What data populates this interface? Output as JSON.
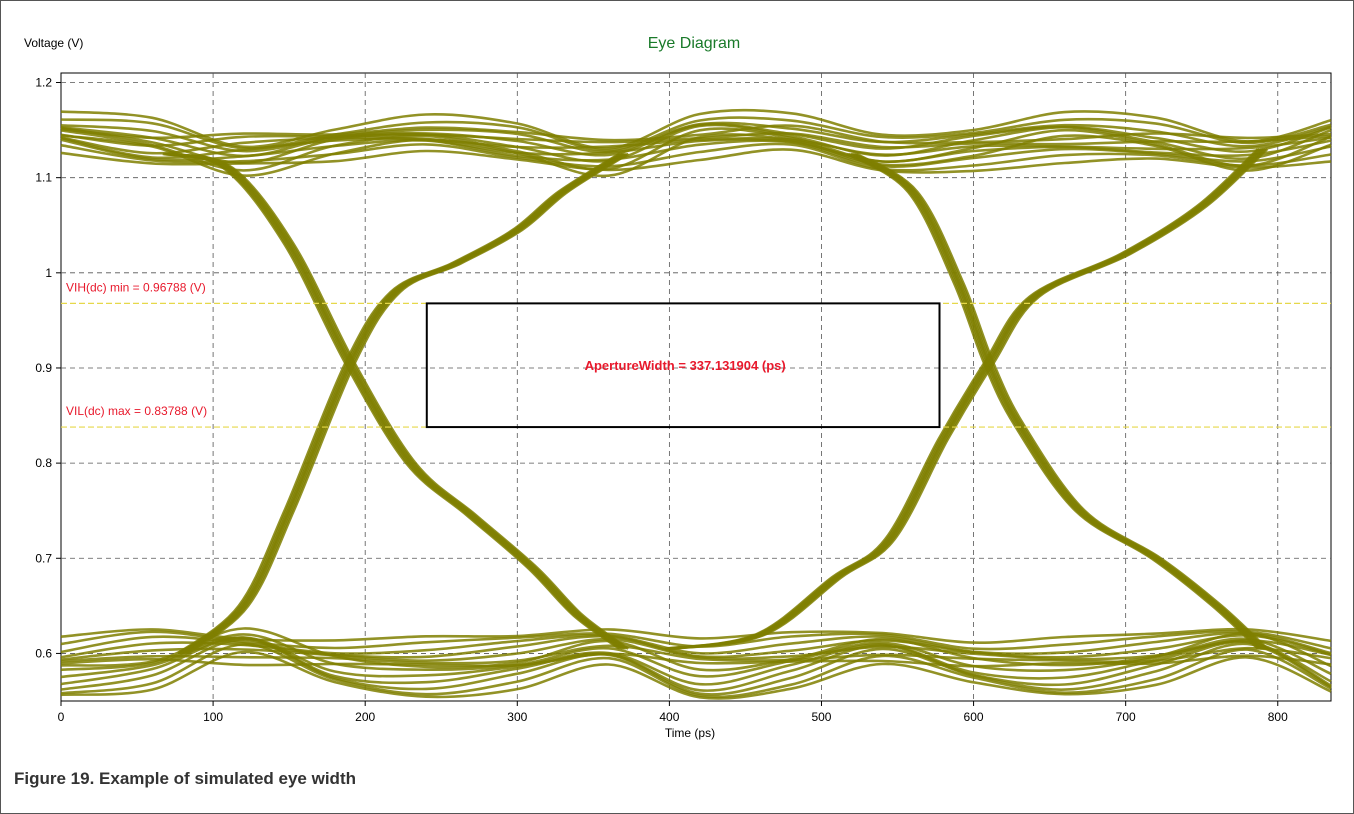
{
  "figure": {
    "caption": "Figure 19.  Example of simulated eye width"
  },
  "colors": {
    "trace": "#7f7f00",
    "title": "#1a7a2a",
    "threshold_line": "#e6d84a",
    "threshold_text": "#e8192c",
    "aperture_text": "#e8192c",
    "grid": "#555555",
    "axis": "#000000"
  },
  "chart_data": {
    "type": "line",
    "title": "Eye Diagram",
    "xlabel": "Time (ps)",
    "ylabel": "Voltage (V)",
    "xlim": [
      0,
      835
    ],
    "ylim": [
      0.55,
      1.21
    ],
    "xticks": [
      0,
      100,
      200,
      300,
      400,
      500,
      600,
      700,
      800
    ],
    "xtick_labels": [
      "0",
      "100",
      "200",
      "300",
      "400",
      "500",
      "600",
      "700",
      "800"
    ],
    "yticks": [
      0.6,
      0.7,
      0.8,
      0.9,
      1.0,
      1.1,
      1.2
    ],
    "ytick_labels": [
      "0.6",
      "0.7",
      "0.8",
      "0.9",
      "1",
      "1.1",
      "1.2"
    ],
    "grid": true,
    "grid_style": "dashed",
    "thresholds": [
      {
        "label": "VIH(dc) min = 0.96788 (V)",
        "value": 0.96788
      },
      {
        "label": "VIL(dc) max = 0.83788 (V)",
        "value": 0.83788
      }
    ],
    "aperture": {
      "label": "ApertureWidth = 337.131904 (ps)",
      "x_start": 240.5,
      "x_end": 577.6,
      "y_low": 0.83788,
      "y_high": 0.96788
    },
    "series": [
      {
        "role": "high-rail-1",
        "x": [
          0,
          60,
          120,
          180,
          240,
          300,
          360,
          420,
          480,
          540,
          600,
          660,
          720,
          780,
          835
        ],
        "y": [
          1.14,
          1.125,
          1.13,
          1.135,
          1.14,
          1.13,
          1.125,
          1.135,
          1.14,
          1.12,
          1.125,
          1.13,
          1.13,
          1.125,
          1.135
        ]
      },
      {
        "role": "high-rail-2",
        "x": [
          0,
          60,
          120,
          180,
          240,
          300,
          360,
          420,
          480,
          540,
          600,
          660,
          720,
          780,
          835
        ],
        "y": [
          1.155,
          1.145,
          1.12,
          1.14,
          1.15,
          1.14,
          1.12,
          1.155,
          1.15,
          1.13,
          1.14,
          1.155,
          1.145,
          1.125,
          1.15
        ]
      },
      {
        "role": "low-rail-1",
        "x": [
          0,
          60,
          120,
          180,
          240,
          300,
          360,
          420,
          480,
          540,
          600,
          660,
          720,
          780,
          835
        ],
        "y": [
          0.6,
          0.61,
          0.605,
          0.6,
          0.6,
          0.605,
          0.615,
          0.6,
          0.605,
          0.61,
          0.6,
          0.6,
          0.605,
          0.615,
          0.6
        ]
      },
      {
        "role": "low-rail-2",
        "x": [
          0,
          60,
          120,
          180,
          240,
          300,
          360,
          420,
          480,
          540,
          600,
          660,
          720,
          780,
          835
        ],
        "y": [
          0.57,
          0.58,
          0.615,
          0.58,
          0.57,
          0.58,
          0.6,
          0.565,
          0.58,
          0.605,
          0.58,
          0.57,
          0.585,
          0.61,
          0.57
        ]
      },
      {
        "role": "falling-edge-1",
        "x": [
          70,
          110,
          150,
          190,
          230,
          270,
          310,
          340,
          370
        ],
        "y": [
          1.125,
          1.11,
          1.03,
          0.905,
          0.8,
          0.745,
          0.69,
          0.64,
          0.605
        ]
      },
      {
        "role": "falling-edge-2",
        "x": [
          520,
          560,
          590,
          610,
          630,
          670,
          720,
          760,
          790
        ],
        "y": [
          1.125,
          1.085,
          0.99,
          0.905,
          0.84,
          0.75,
          0.7,
          0.65,
          0.605
        ]
      },
      {
        "role": "rising-edge-1",
        "x": [
          80,
          120,
          150,
          190,
          220,
          260,
          300,
          330,
          370
        ],
        "y": [
          0.6,
          0.65,
          0.75,
          0.905,
          0.98,
          1.01,
          1.045,
          1.085,
          1.125
        ]
      },
      {
        "role": "rising-edge-2",
        "x": [
          400,
          460,
          510,
          545,
          580,
          610,
          640,
          700,
          750,
          790
        ],
        "y": [
          0.605,
          0.62,
          0.68,
          0.72,
          0.825,
          0.905,
          0.975,
          1.02,
          1.07,
          1.13
        ]
      }
    ]
  }
}
